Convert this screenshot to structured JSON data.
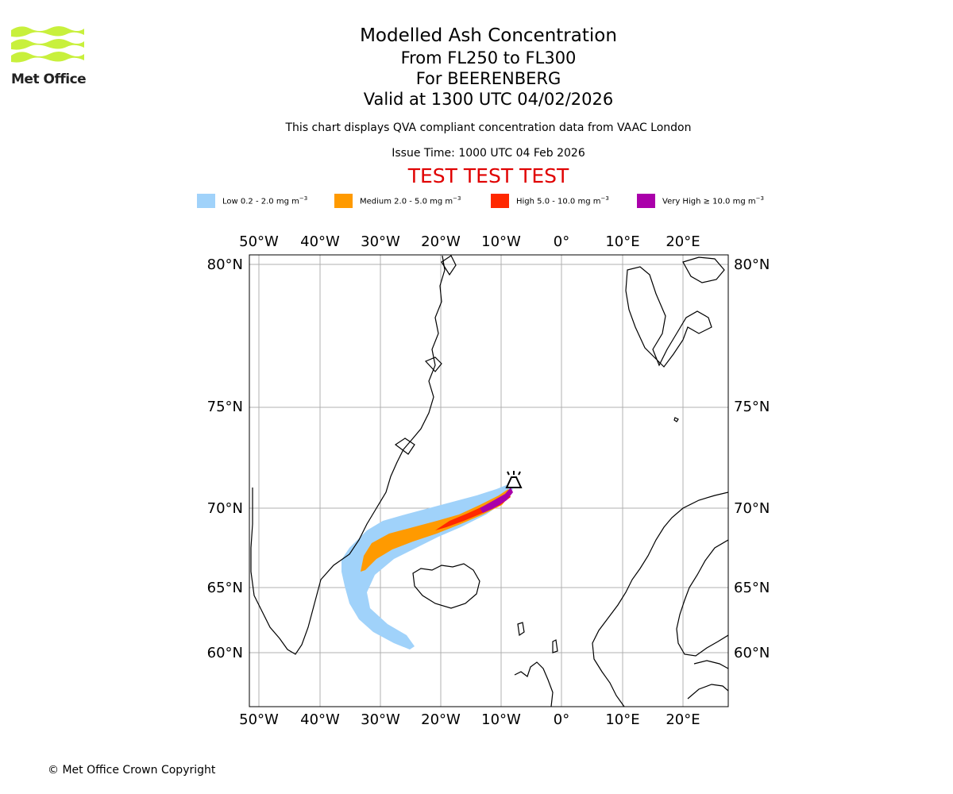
{
  "brand": {
    "name": "Met Office",
    "color": "#c8f03c"
  },
  "header": {
    "title": "Modelled Ash Concentration",
    "level_range": "From FL250 to FL300",
    "volcano": "For BEERENBERG",
    "valid_time": "Valid at 1300 UTC 04/02/2026",
    "note": "This chart displays QVA compliant concentration data from VAAC London",
    "issue_time": "Issue Time: 1000 UTC 04 Feb 2026",
    "test_banner": "TEST TEST TEST"
  },
  "legend": [
    {
      "label": "Low 0.2 - 2.0 mg m",
      "unit_exp": "−3",
      "color": "#a0d2fa"
    },
    {
      "label": "Medium 2.0 - 5.0 mg m",
      "unit_exp": "−3",
      "color": "#ff9a00"
    },
    {
      "label": "High 5.0 - 10.0 mg m",
      "unit_exp": "−3",
      "color": "#ff2800"
    },
    {
      "label": "Very High  ≥  10.0 mg m",
      "unit_exp": "−3",
      "color": "#aa00aa"
    }
  ],
  "map": {
    "lon_ticks": [
      "50°W",
      "40°W",
      "30°W",
      "20°W",
      "10°W",
      "0°",
      "10°E",
      "20°E"
    ],
    "lat_ticks": [
      "80°N",
      "75°N",
      "70°N",
      "65°N",
      "60°N"
    ],
    "volcano_icon": "volcano-symbol",
    "gridline_color": "#b0b0b0"
  },
  "footer": {
    "copyright": "© Met Office Crown Copyright"
  }
}
